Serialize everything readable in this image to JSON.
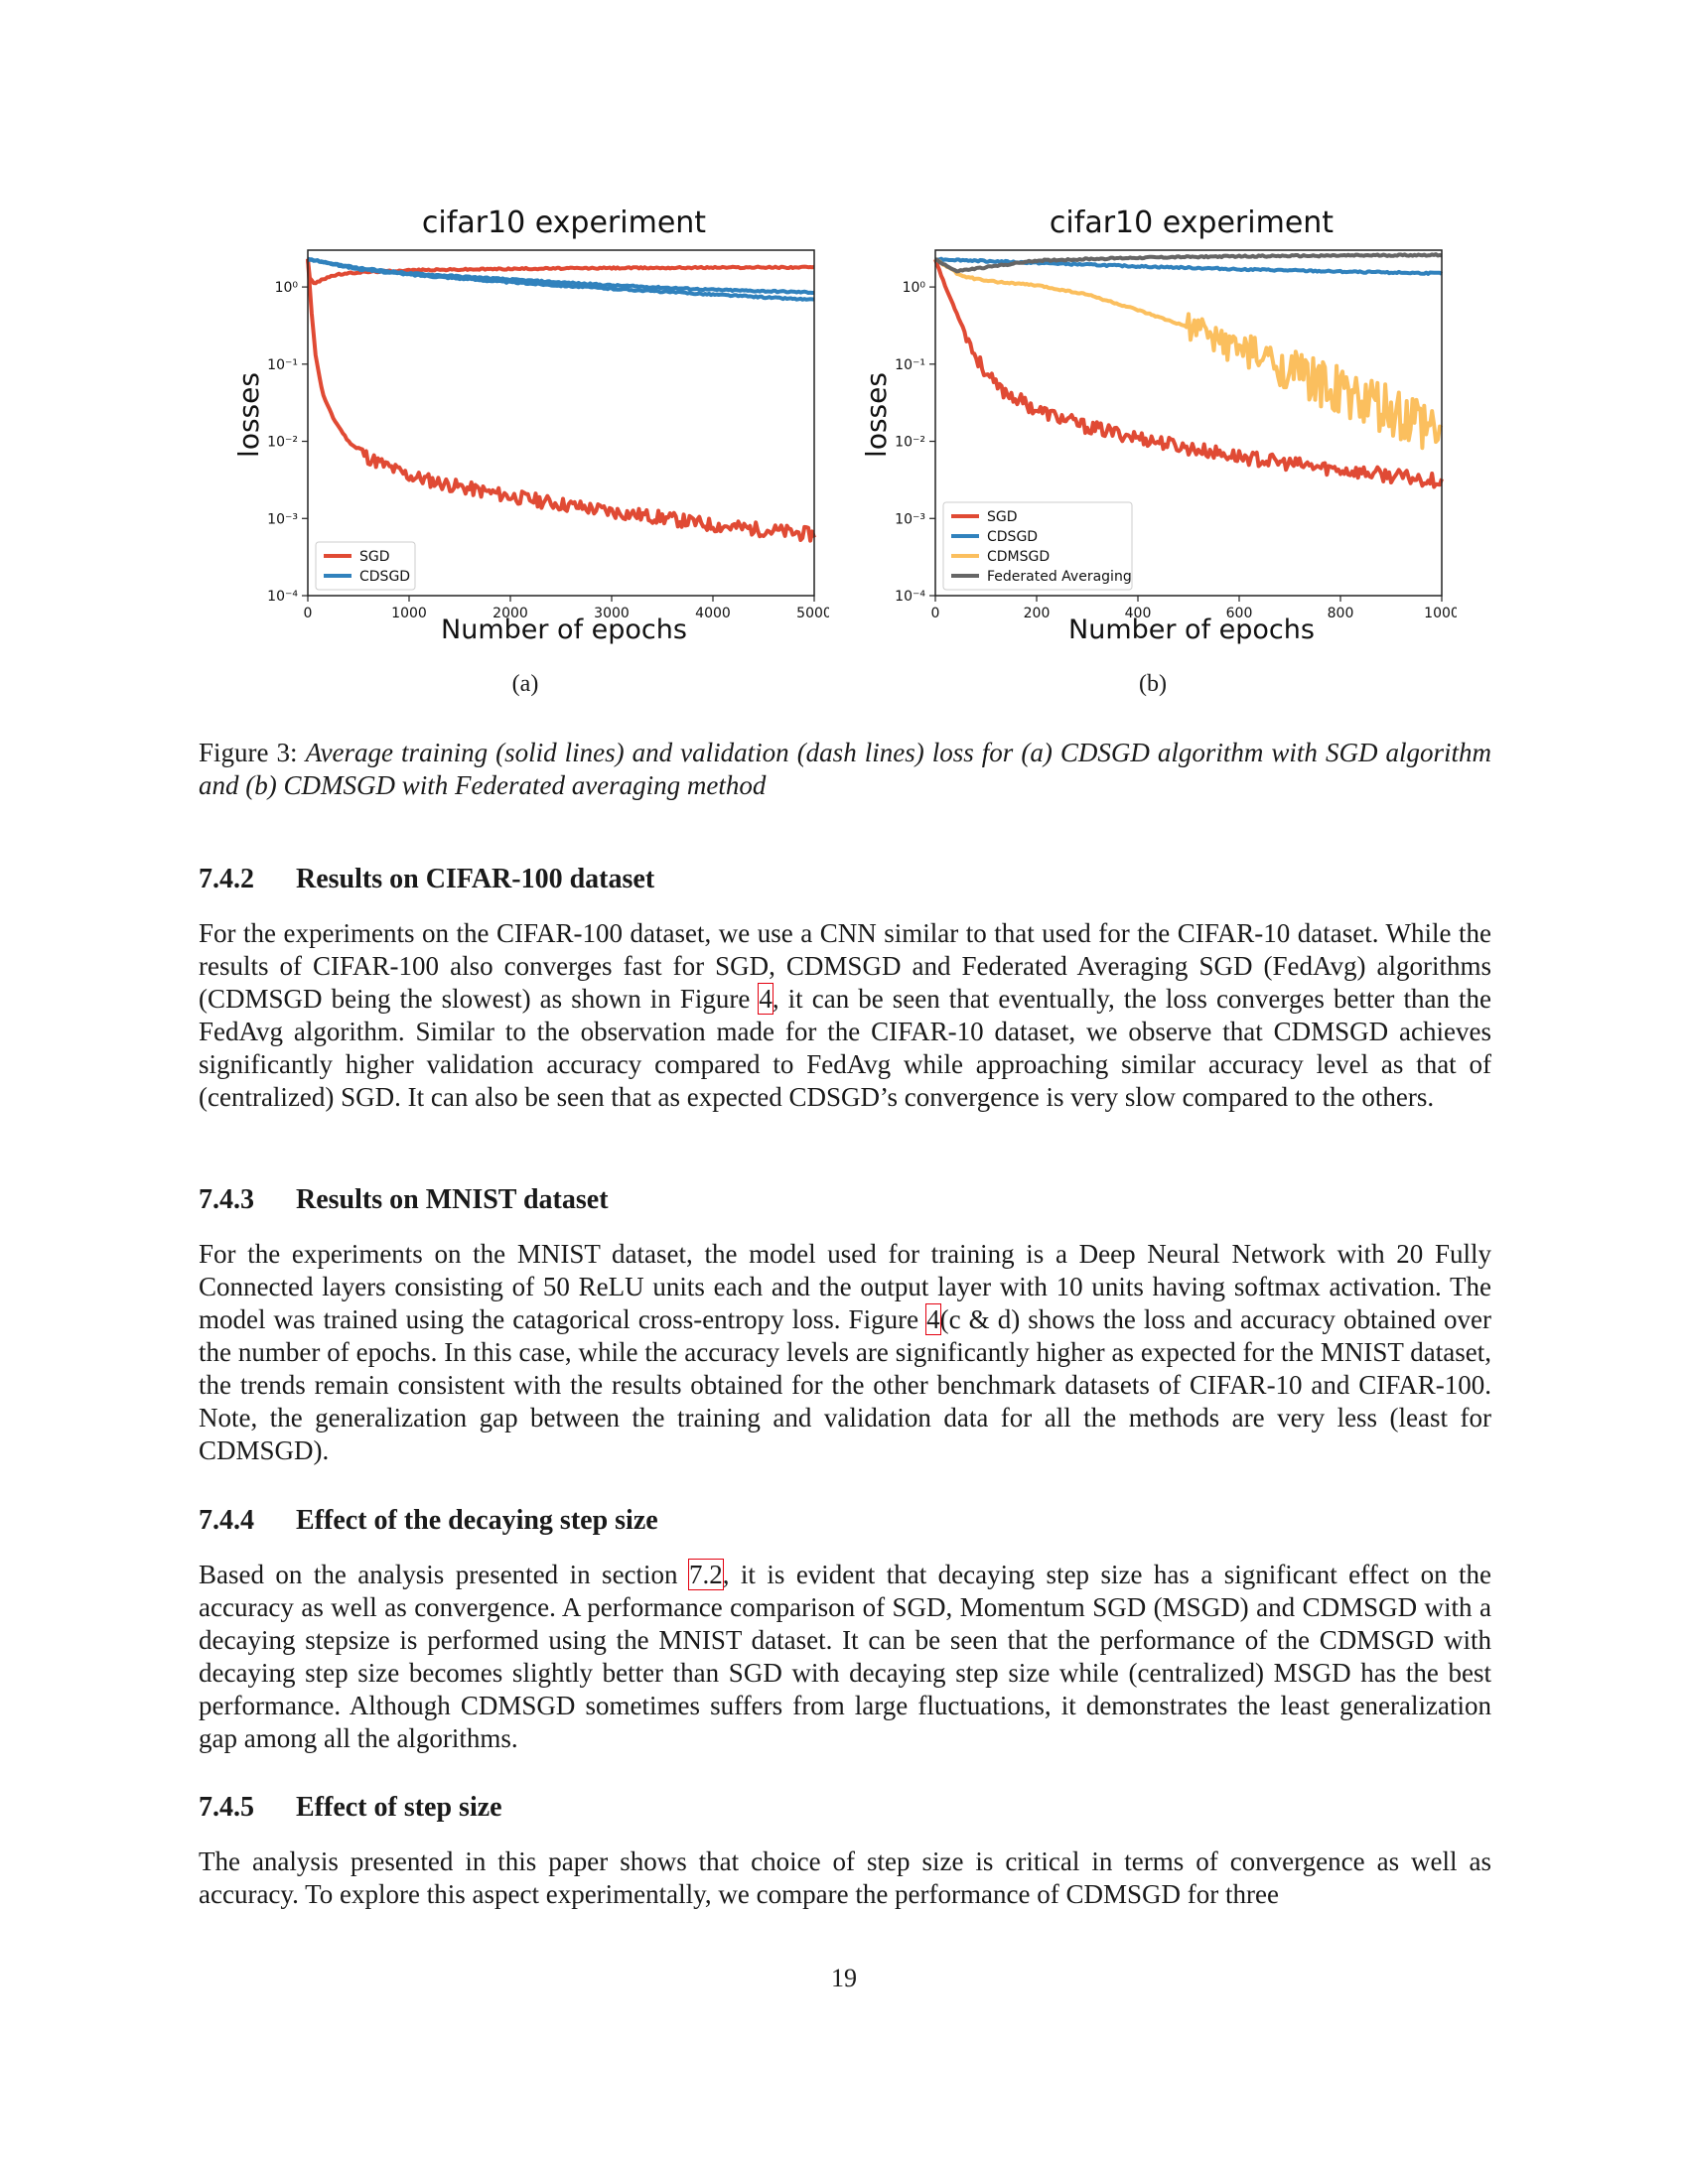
{
  "figures": {
    "a": {
      "sublabel": "(a)",
      "chart_data": {
        "type": "line",
        "title": "cifar10 experiment",
        "xlabel": "Number of epochs",
        "ylabel": "losses",
        "xlim": [
          0,
          5000
        ],
        "ylim": [
          0.0001,
          3
        ],
        "yscale": "log",
        "x_ticks": [
          "0",
          "1000",
          "2000",
          "3000",
          "4000",
          "5000"
        ],
        "y_ticks": [
          "10⁰",
          "10⁻¹",
          "10⁻²",
          "10⁻³",
          "10⁻⁴"
        ],
        "grid": false,
        "legend_position": "bottom-left",
        "series": [
          {
            "name": "SGD",
            "color": "#e04a34",
            "noisy_from": 500,
            "x": [
              0,
              30,
              80,
              150,
              250,
              400,
              600,
              800,
              1000,
              1500,
              2000,
              2500,
              3000,
              3500,
              4000,
              4500,
              5000
            ],
            "y": [
              2.3,
              0.6,
              0.12,
              0.04,
              0.02,
              0.01,
              0.006,
              0.0045,
              0.0035,
              0.0025,
              0.0019,
              0.0015,
              0.0012,
              0.001,
              0.0008,
              0.0007,
              0.0006
            ]
          },
          {
            "name": "SGD",
            "color": "#e04a34",
            "noisy_from": 99999,
            "x": [
              0,
              20,
              60,
              120,
              200,
              300,
              500,
              1000,
              2000,
              3000,
              4000,
              5000
            ],
            "y": [
              2.3,
              1.3,
              1.1,
              1.2,
              1.35,
              1.45,
              1.55,
              1.65,
              1.72,
              1.76,
              1.79,
              1.8
            ]
          },
          {
            "name": "CDSGD",
            "color": "#3182bd",
            "noisy_from": 99999,
            "x": [
              0,
              500,
              1000,
              2000,
              3000,
              4000,
              5000
            ],
            "y": [
              2.3,
              1.75,
              1.5,
              1.25,
              1.05,
              0.92,
              0.85
            ]
          },
          {
            "name": "CDSGD",
            "color": "#3182bd",
            "noisy_from": 99999,
            "x": [
              0,
              500,
              1000,
              2000,
              3000,
              4000,
              5000
            ],
            "y": [
              2.3,
              1.7,
              1.45,
              1.15,
              0.95,
              0.8,
              0.68
            ]
          }
        ],
        "legend": [
          {
            "label": "SGD",
            "color": "#e04a34"
          },
          {
            "label": "CDSGD",
            "color": "#3182bd"
          }
        ]
      }
    },
    "b": {
      "sublabel": "(b)",
      "chart_data": {
        "type": "line",
        "title": "cifar10 experiment",
        "xlabel": "Number of epochs",
        "ylabel": "losses",
        "xlim": [
          0,
          1000
        ],
        "ylim": [
          0.0001,
          3
        ],
        "yscale": "log",
        "x_ticks": [
          "0",
          "200",
          "400",
          "600",
          "800",
          "1000"
        ],
        "y_ticks": [
          "10⁰",
          "10⁻¹",
          "10⁻²",
          "10⁻³",
          "10⁻⁴"
        ],
        "grid": false,
        "legend_position": "bottom-left",
        "series": [
          {
            "name": "SGD",
            "color": "#e04a34",
            "noisy_from": 60,
            "x": [
              0,
              20,
              50,
              80,
              120,
              200,
              300,
              400,
              500,
              600,
              700,
              800,
              900,
              1000
            ],
            "y": [
              2.3,
              1.0,
              0.35,
              0.12,
              0.05,
              0.025,
              0.015,
              0.011,
              0.008,
              0.0062,
              0.005,
              0.0042,
              0.0035,
              0.003
            ]
          },
          {
            "name": "CDSGD",
            "color": "#3182bd",
            "noisy_from": 99999,
            "x": [
              0,
              200,
              400,
              600,
              800,
              1000
            ],
            "y": [
              2.3,
              2.05,
              1.85,
              1.7,
              1.58,
              1.5
            ]
          },
          {
            "name": "CDMSGD",
            "color": "#fbbf5e",
            "noisy_from": 500,
            "x": [
              0,
              50,
              100,
              200,
              300,
              400,
              500,
              600,
              700,
              800,
              900,
              1000
            ],
            "y": [
              2.3,
              1.4,
              1.2,
              1.05,
              0.8,
              0.5,
              0.3,
              0.15,
              0.08,
              0.04,
              0.02,
              0.01
            ]
          },
          {
            "name": "Federated Averaging",
            "color": "#666666",
            "noisy_from": 99999,
            "x": [
              0,
              40,
              100,
              200,
              400,
              600,
              800,
              1000
            ],
            "y": [
              2.3,
              1.6,
              1.8,
              2.2,
              2.4,
              2.5,
              2.55,
              2.6
            ]
          }
        ],
        "legend": [
          {
            "label": "SGD",
            "color": "#e04a34"
          },
          {
            "label": "CDSGD",
            "color": "#3182bd"
          },
          {
            "label": "CDMSGD",
            "color": "#fbbf5e"
          },
          {
            "label": "Federated Averaging",
            "color": "#666666"
          }
        ]
      }
    }
  },
  "caption": {
    "prefix": "Figure 3:",
    "text": "Average training (solid lines) and validation (dash lines) loss for (a) CDSGD algorithm with SGD algorithm and (b) CDMSGD with Federated averaging method"
  },
  "sections": [
    {
      "number": "7.4.2",
      "title": "Results on CIFAR-100 dataset",
      "paragraph": {
        "a": "For the experiments on the CIFAR-100 dataset, we use a CNN similar to that used for the CIFAR-10 dataset. While the results of CIFAR-100 also converges fast for SGD, CDMSGD and Federated Averaging SGD (FedAvg) algorithms (CDMSGD being the slowest) as shown in Figure ",
        "ref": "4",
        "b": ", it can be seen that eventually, the loss converges better than the FedAvg algorithm. Similar to the observation made for the CIFAR-10 dataset, we observe that CDMSGD achieves significantly higher validation accuracy compared to FedAvg while approaching similar accuracy level as that of (centralized) SGD. It can also be seen that as expected CDSGD’s convergence is very slow compared to the others."
      }
    },
    {
      "number": "7.4.3",
      "title": "Results on MNIST dataset",
      "paragraph": {
        "a": "For the experiments on the MNIST dataset, the model used for training is a Deep Neural Network with 20 Fully Connected layers consisting of 50 ReLU units each and the output layer with 10 units having softmax activation. The model was trained using the catagorical cross-entropy loss. Figure ",
        "ref": "4",
        "b": "(c & d) shows the loss and accuracy obtained over the number of epochs. In this case, while the accuracy levels are significantly higher as expected for the MNIST dataset, the trends remain consistent with the results obtained for the other benchmark datasets of CIFAR-10 and CIFAR-100. Note, the generalization gap between the training and validation data for all the methods are very less (least for CDMSGD)."
      }
    },
    {
      "number": "7.4.4",
      "title": "Effect of the decaying step size",
      "paragraph": {
        "a": "Based on the analysis presented in section ",
        "ref": "7.2",
        "b": ", it is evident that decaying step size has a significant effect on the accuracy as well as convergence. A performance comparison of SGD, Momentum SGD (MSGD) and CDMSGD with a decaying stepsize is performed using the MNIST dataset. It can be seen that the performance of the CDMSGD with decaying step size becomes slightly better than SGD with decaying step size while (centralized) MSGD has the best performance. Although CDMSGD sometimes suffers from large fluctuations, it demonstrates the least generalization gap among all the algorithms."
      }
    },
    {
      "number": "7.4.5",
      "title": "Effect of step size",
      "paragraph": {
        "a": "The analysis presented in this paper shows that choice of step size is critical in terms of convergence as well as accuracy. To explore this aspect experimentally, we compare the performance of CDMSGD for three",
        "ref": "",
        "b": ""
      }
    }
  ],
  "page_number": "19"
}
